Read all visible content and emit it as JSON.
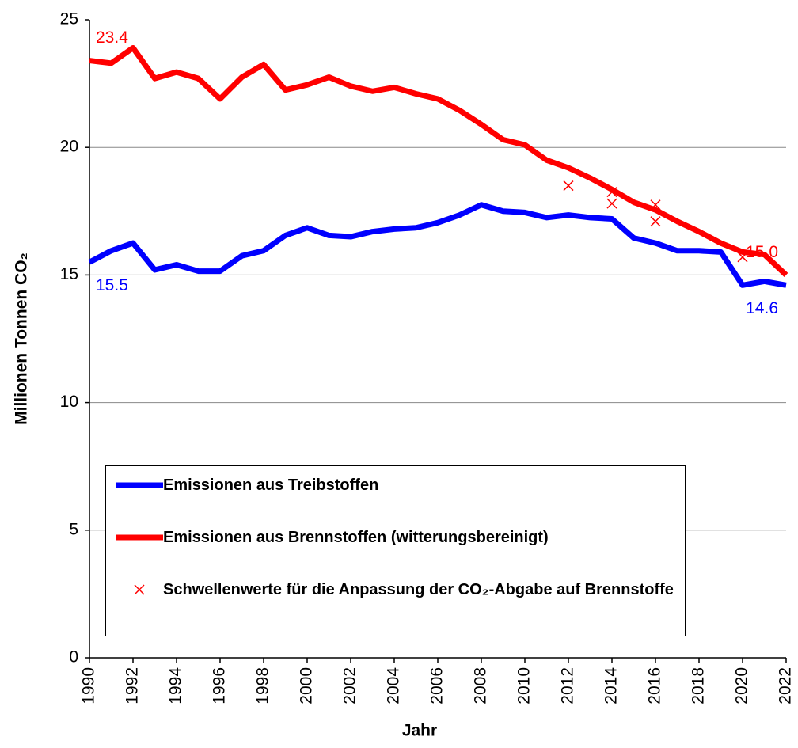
{
  "chart_data": {
    "type": "line",
    "x_label": "Jahr",
    "y_label": "Millionen Tonnen CO₂",
    "x": [
      1990,
      1991,
      1992,
      1993,
      1994,
      1995,
      1996,
      1997,
      1998,
      1999,
      2000,
      2001,
      2002,
      2003,
      2004,
      2005,
      2006,
      2007,
      2008,
      2009,
      2010,
      2011,
      2012,
      2013,
      2014,
      2015,
      2016,
      2017,
      2018,
      2019,
      2020,
      2021,
      2022
    ],
    "xlim": [
      1990,
      2022
    ],
    "xticks": [
      1990,
      1992,
      1994,
      1996,
      1998,
      2000,
      2002,
      2004,
      2006,
      2008,
      2010,
      2012,
      2014,
      2016,
      2018,
      2020,
      2022
    ],
    "ylim": [
      0,
      25
    ],
    "yticks": [
      0,
      5,
      10,
      15,
      20,
      25
    ],
    "grid": true,
    "series": [
      {
        "name": "Emissionen aus Treibstoffen",
        "type": "line",
        "color": "#0000ff",
        "values": [
          15.5,
          15.95,
          16.25,
          15.2,
          15.4,
          15.15,
          15.15,
          15.75,
          15.95,
          16.55,
          16.85,
          16.55,
          16.5,
          16.7,
          16.8,
          16.85,
          17.05,
          17.35,
          17.75,
          17.5,
          17.45,
          17.25,
          17.35,
          17.25,
          17.2,
          16.45,
          16.25,
          15.95,
          15.95,
          15.9,
          14.6,
          14.75,
          14.6
        ],
        "value_labels": [
          "15.5",
          null,
          null,
          null,
          null,
          null,
          null,
          null,
          null,
          null,
          null,
          null,
          null,
          null,
          null,
          null,
          null,
          null,
          null,
          null,
          null,
          null,
          null,
          null,
          null,
          null,
          null,
          null,
          null,
          null,
          null,
          null,
          "14.6"
        ]
      },
      {
        "name": "Emissionen aus Brennstoffen (witterungsbereinigt)",
        "type": "line",
        "color": "#ff0000",
        "values": [
          23.4,
          23.3,
          23.9,
          22.7,
          22.95,
          22.7,
          21.9,
          22.75,
          23.25,
          22.25,
          22.45,
          22.75,
          22.4,
          22.2,
          22.35,
          22.1,
          21.9,
          21.45,
          20.9,
          20.3,
          20.1,
          19.5,
          19.2,
          18.8,
          18.35,
          17.85,
          17.55,
          17.1,
          16.7,
          16.25,
          15.9,
          15.8,
          15.0
        ],
        "value_labels": [
          "23.4",
          null,
          null,
          null,
          null,
          null,
          null,
          null,
          null,
          null,
          null,
          null,
          null,
          null,
          null,
          null,
          null,
          null,
          null,
          null,
          null,
          null,
          null,
          null,
          null,
          null,
          null,
          null,
          null,
          null,
          null,
          null,
          "15.0"
        ]
      },
      {
        "name": "Schwellenwerte für die Anpassung der CO₂-Abgabe auf Brennstoffe",
        "type": "scatter",
        "color": "#ff0000",
        "x": [
          2012,
          2014,
          2014,
          2016,
          2016,
          2020
        ],
        "values": [
          18.5,
          18.25,
          17.8,
          17.75,
          17.1,
          15.7
        ]
      }
    ],
    "legend": "lower-left"
  }
}
